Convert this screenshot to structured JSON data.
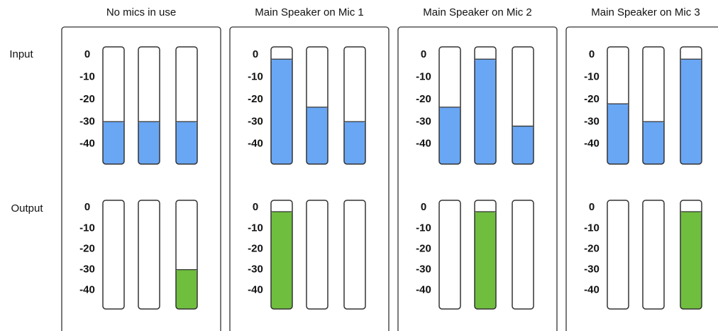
{
  "row_labels": {
    "input": "Input",
    "output": "Output"
  },
  "scale": [
    0,
    -10,
    -20,
    -30,
    -40
  ],
  "scale_range": [
    3.5,
    -49
  ],
  "colors": {
    "input": "#69a7f5",
    "output": "#6fbe3e"
  },
  "panels": [
    {
      "title": "No mics in use",
      "input": [
        -30,
        -30,
        -30
      ],
      "output": [
        null,
        null,
        -30
      ]
    },
    {
      "title": "Main Speaker on Mic 1",
      "input": [
        -2,
        -23.5,
        -30
      ],
      "output": [
        -2,
        null,
        null
      ]
    },
    {
      "title": "Main Speaker on Mic 2",
      "input": [
        -23.5,
        -2,
        -32
      ],
      "output": [
        null,
        -2,
        null
      ]
    },
    {
      "title": "Main Speaker on Mic 3",
      "input": [
        -22,
        -30,
        -2
      ],
      "output": [
        null,
        null,
        -2
      ]
    }
  ]
}
